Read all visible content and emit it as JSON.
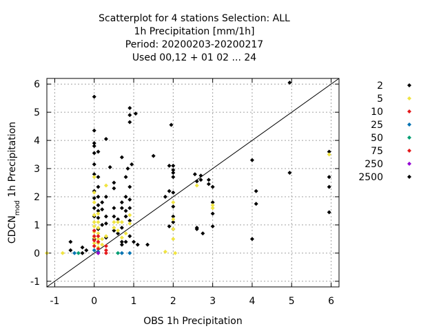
{
  "chart_data": {
    "type": "scatter",
    "title_lines": [
      "Scatterplot for    4 stations Selection: ALL",
      "1h Precipitation [mm/1h]",
      "Period: 20200203-20200217",
      "Used  00,12  + 01 02 ... 24"
    ],
    "xlabel": "OBS 1h Precipitation",
    "ylabel_main": "CDCN",
    "ylabel_sub": "mod",
    "ylabel_rest": " 1h Precipitation",
    "xlim": [
      -1.2,
      6.2
    ],
    "ylim": [
      -1.2,
      6.2
    ],
    "xticks": [
      "-1",
      "0",
      "1",
      "2",
      "3",
      "4",
      "5",
      "6"
    ],
    "yticks": [
      "-1",
      "0",
      "1",
      "2",
      "3",
      "4",
      "5",
      "6"
    ],
    "grid": true,
    "diagonal": true,
    "legend_position": "outside-right",
    "series": [
      {
        "name": "2",
        "color": "#000000",
        "points": [
          [
            0,
            5.55
          ],
          [
            0,
            4.35
          ],
          [
            0,
            3.9
          ],
          [
            0,
            3.8
          ],
          [
            0,
            3.55
          ],
          [
            0,
            3.15
          ],
          [
            0,
            2.8
          ],
          [
            0,
            2.2
          ],
          [
            0,
            1.95
          ],
          [
            0,
            1.6
          ],
          [
            0,
            1.3
          ],
          [
            0,
            0.5
          ],
          [
            0.1,
            3.6
          ],
          [
            0.1,
            2.7
          ],
          [
            0.1,
            2.35
          ],
          [
            0.1,
            2.0
          ],
          [
            0.1,
            1.7
          ],
          [
            0.1,
            1.5
          ],
          [
            0.1,
            1.25
          ],
          [
            0.1,
            0.85
          ],
          [
            0.2,
            1.8
          ],
          [
            0.2,
            1.55
          ],
          [
            0.2,
            1.0
          ],
          [
            0.3,
            4.05
          ],
          [
            0.3,
            2.0
          ],
          [
            0.3,
            1.3
          ],
          [
            0.3,
            1.05
          ],
          [
            0.3,
            0.55
          ],
          [
            0.4,
            3.05
          ],
          [
            0.5,
            2.5
          ],
          [
            0.5,
            2.3
          ],
          [
            0.5,
            1.6
          ],
          [
            0.5,
            1.3
          ],
          [
            0.5,
            0.8
          ],
          [
            0.6,
            1.2
          ],
          [
            0.6,
            0.7
          ],
          [
            0.7,
            1.8
          ],
          [
            0.7,
            1.6
          ],
          [
            0.7,
            0.9
          ],
          [
            0.7,
            0.4
          ],
          [
            0.7,
            0.3
          ],
          [
            0.7,
            3.4
          ],
          [
            0.8,
            2.7
          ],
          [
            0.8,
            2.0
          ],
          [
            0.8,
            1.5
          ],
          [
            0.8,
            1.3
          ],
          [
            0.8,
            0.4
          ],
          [
            0.85,
            3.0
          ],
          [
            0.9,
            5.15
          ],
          [
            0.9,
            4.9
          ],
          [
            0.9,
            4.65
          ],
          [
            0.9,
            2.35
          ],
          [
            0.9,
            1.9
          ],
          [
            0.9,
            1.6
          ],
          [
            0.9,
            1.15
          ],
          [
            0.9,
            0.6
          ],
          [
            0.95,
            3.15
          ],
          [
            1.0,
            0.4
          ],
          [
            1.05,
            4.95
          ],
          [
            1.1,
            0.3
          ],
          [
            1.35,
            0.3
          ],
          [
            1.5,
            3.45
          ],
          [
            1.8,
            2.0
          ],
          [
            1.9,
            3.1
          ],
          [
            1.9,
            2.2
          ],
          [
            1.9,
            0.95
          ],
          [
            1.95,
            4.55
          ],
          [
            2.0,
            3.1
          ],
          [
            2.0,
            2.95
          ],
          [
            2.0,
            2.85
          ],
          [
            2.0,
            2.7
          ],
          [
            2.0,
            2.15
          ],
          [
            2.0,
            1.65
          ],
          [
            2.0,
            1.3
          ],
          [
            2.0,
            1.1
          ],
          [
            2.0,
            0.85
          ],
          [
            2.55,
            2.8
          ],
          [
            2.6,
            0.9
          ],
          [
            2.6,
            0.85
          ],
          [
            2.6,
            2.55
          ],
          [
            2.7,
            2.6
          ],
          [
            2.7,
            2.75
          ],
          [
            2.75,
            0.7
          ],
          [
            2.9,
            2.6
          ],
          [
            2.9,
            2.45
          ],
          [
            3.0,
            2.35
          ],
          [
            3.0,
            1.8
          ],
          [
            3.0,
            1.4
          ],
          [
            3.0,
            0.95
          ],
          [
            4.0,
            3.3
          ],
          [
            4.0,
            0.5
          ],
          [
            4.1,
            2.2
          ],
          [
            4.1,
            1.75
          ],
          [
            4.95,
            6.05
          ],
          [
            4.95,
            2.85
          ],
          [
            5.95,
            3.6
          ],
          [
            5.95,
            2.7
          ],
          [
            5.95,
            2.35
          ],
          [
            5.95,
            1.45
          ],
          [
            -0.6,
            0.4
          ],
          [
            -0.6,
            0.1
          ],
          [
            -0.3,
            0.2
          ],
          [
            -0.3,
            0.0
          ],
          [
            -0.2,
            0.1
          ]
        ]
      },
      {
        "name": "5",
        "color": "#f0e442",
        "points": [
          [
            -1.2,
            0.0
          ],
          [
            -0.8,
            0.0
          ],
          [
            0,
            2.7
          ],
          [
            0,
            2.15
          ],
          [
            0,
            1.8
          ],
          [
            0,
            1.35
          ],
          [
            0,
            1.1
          ],
          [
            0,
            0.95
          ],
          [
            0,
            0.75
          ],
          [
            0,
            0.55
          ],
          [
            0,
            0.35
          ],
          [
            0.1,
            1.4
          ],
          [
            0.1,
            1.1
          ],
          [
            0.1,
            0.9
          ],
          [
            0.1,
            0.7
          ],
          [
            0.1,
            0.5
          ],
          [
            0.1,
            0.35
          ],
          [
            0.1,
            0.2
          ],
          [
            0.2,
            0.5
          ],
          [
            0.2,
            0.3
          ],
          [
            0.3,
            2.4
          ],
          [
            0.3,
            0.6
          ],
          [
            0.5,
            1.1
          ],
          [
            0.5,
            0.9
          ],
          [
            0.6,
            0.8
          ],
          [
            0.6,
            1.1
          ],
          [
            0.7,
            1.1
          ],
          [
            0.7,
            0.55
          ],
          [
            0.8,
            0.7
          ],
          [
            0.9,
            1.35
          ],
          [
            0.9,
            1.05
          ],
          [
            1.8,
            0.05
          ],
          [
            2.0,
            1.8
          ],
          [
            2.0,
            1.2
          ],
          [
            2.0,
            0.85
          ],
          [
            2.0,
            0.5
          ],
          [
            2.05,
            0.0
          ],
          [
            2.6,
            2.4
          ],
          [
            3.0,
            1.7
          ],
          [
            3.0,
            1.6
          ],
          [
            5.95,
            3.5
          ]
        ]
      },
      {
        "name": "10",
        "color": "#e41a1c",
        "points": [
          [
            0,
            0.8
          ],
          [
            0,
            0.6
          ],
          [
            0,
            0.45
          ],
          [
            0,
            0.25
          ],
          [
            0.1,
            0.6
          ],
          [
            0.1,
            0.4
          ],
          [
            0.1,
            0.15
          ],
          [
            0.3,
            0.1
          ],
          [
            0.3,
            0.0
          ],
          [
            0.3,
            0.25
          ]
        ]
      },
      {
        "name": "25",
        "color": "#0072b2",
        "points": [
          [
            -0.5,
            0.0
          ],
          [
            0,
            0.1
          ],
          [
            0.1,
            0.05
          ],
          [
            0.7,
            0.0
          ],
          [
            0.9,
            0.0
          ]
        ]
      },
      {
        "name": "50",
        "color": "#009e73",
        "points": [
          [
            -0.4,
            0.0
          ],
          [
            0.6,
            0.0
          ]
        ]
      },
      {
        "name": "75",
        "color": "#e41a1c",
        "points": [
          [
            0.1,
            0.0
          ]
        ]
      },
      {
        "name": "250",
        "color": "#9400d3",
        "points": [
          [
            0.1,
            0.0
          ]
        ]
      },
      {
        "name": "2500",
        "color": "#000000",
        "points": []
      }
    ]
  }
}
